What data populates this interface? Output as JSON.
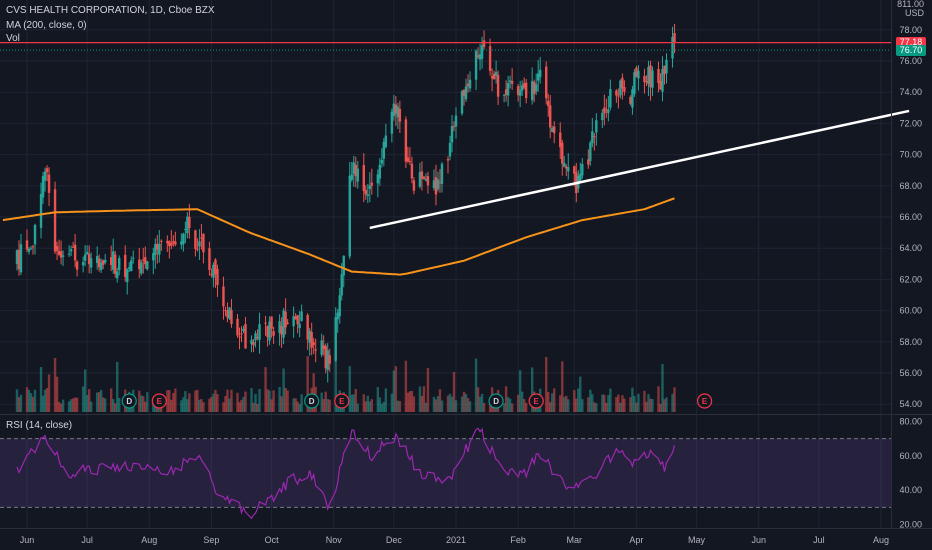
{
  "header": {
    "title": "CVS HEALTH CORPORATION, 1D, Cboe BZX",
    "ma_label": "MA (200, close, 0)",
    "vol_label": "Vol",
    "rsi_label": "RSI (14, close)",
    "currency": "USD",
    "top_right_partial": "811.00"
  },
  "price_tags": {
    "last": "77.18",
    "prev": "76.70",
    "last_color": "#f23645",
    "prev_color": "#089981"
  },
  "chart_data": [
    {
      "type": "candlestick",
      "title": "CVS HEALTH CORPORATION, 1D, Cboe BZX",
      "x_ticks": [
        "Jun",
        "Jul",
        "Aug",
        "Sep",
        "Oct",
        "Nov",
        "Dec",
        "2021",
        "Feb",
        "Mar",
        "Apr",
        "May",
        "Jun",
        "Jul",
        "Aug"
      ],
      "y_ticks": [
        "78.00",
        "76.00",
        "74.00",
        "72.00",
        "70.00",
        "68.00",
        "66.00",
        "64.00",
        "62.00",
        "60.00",
        "58.00",
        "56.00",
        "54.00"
      ],
      "ylim": [
        53.5,
        78.5
      ],
      "series": [
        {
          "name": "CVS",
          "color_up": "#26a69a",
          "color_down": "#ef5350",
          "anchors": [
            {
              "x": "2020-05-27",
              "close": 63.2
            },
            {
              "x": "2020-06-05",
              "close": 65.0
            },
            {
              "x": "2020-06-10",
              "close": 69.5
            },
            {
              "x": "2020-06-15",
              "close": 64.5
            },
            {
              "x": "2020-06-22",
              "close": 63.2
            },
            {
              "x": "2020-07-01",
              "close": 63.5
            },
            {
              "x": "2020-07-10",
              "close": 63.5
            },
            {
              "x": "2020-07-20",
              "close": 62.5
            },
            {
              "x": "2020-08-03",
              "close": 63.5
            },
            {
              "x": "2020-08-20",
              "close": 65.5
            },
            {
              "x": "2020-09-01",
              "close": 63.0
            },
            {
              "x": "2020-09-10",
              "close": 59.5
            },
            {
              "x": "2020-09-20",
              "close": 58.0
            },
            {
              "x": "2020-10-01",
              "close": 59.0
            },
            {
              "x": "2020-10-15",
              "close": 59.5
            },
            {
              "x": "2020-10-30",
              "close": 56.5
            },
            {
              "x": "2020-11-05",
              "close": 62.5
            },
            {
              "x": "2020-11-10",
              "close": 69.5
            },
            {
              "x": "2020-11-20",
              "close": 67.5
            },
            {
              "x": "2020-12-01",
              "close": 74.0
            },
            {
              "x": "2020-12-10",
              "close": 68.5
            },
            {
              "x": "2020-12-23",
              "close": 67.8
            },
            {
              "x": "2021-01-05",
              "close": 74.0
            },
            {
              "x": "2021-01-12",
              "close": 76.8
            },
            {
              "x": "2021-01-22",
              "close": 74.5
            },
            {
              "x": "2021-02-05",
              "close": 73.5
            },
            {
              "x": "2021-02-12",
              "close": 74.8
            },
            {
              "x": "2021-02-20",
              "close": 70.5
            },
            {
              "x": "2021-03-03",
              "close": 68.0
            },
            {
              "x": "2021-03-12",
              "close": 71.5
            },
            {
              "x": "2021-03-22",
              "close": 74.5
            },
            {
              "x": "2021-03-28",
              "close": 73.5
            },
            {
              "x": "2021-04-02",
              "close": 76.0
            },
            {
              "x": "2021-04-12",
              "close": 74.0
            },
            {
              "x": "2021-04-20",
              "close": 77.2
            }
          ]
        },
        {
          "name": "MA (200, close, 0)",
          "color": "#f7931a",
          "anchors": [
            {
              "x": "2020-05-20",
              "y": 65.8
            },
            {
              "x": "2020-06-15",
              "y": 66.3
            },
            {
              "x": "2020-07-15",
              "y": 66.4
            },
            {
              "x": "2020-08-25",
              "y": 66.5
            },
            {
              "x": "2020-09-20",
              "y": 65.0
            },
            {
              "x": "2020-10-20",
              "y": 63.6
            },
            {
              "x": "2020-11-10",
              "y": 62.5
            },
            {
              "x": "2020-12-05",
              "y": 62.3
            },
            {
              "x": "2021-01-05",
              "y": 63.2
            },
            {
              "x": "2021-02-05",
              "y": 64.7
            },
            {
              "x": "2021-03-05",
              "y": 65.8
            },
            {
              "x": "2021-04-05",
              "y": 66.5
            },
            {
              "x": "2021-04-20",
              "y": 67.2
            }
          ]
        },
        {
          "name": "Trendline",
          "color": "#ffffff",
          "anchors": [
            {
              "x": "2020-11-19",
              "y": 65.3
            },
            {
              "x": "2021-08-15",
              "y": 72.8
            }
          ]
        }
      ],
      "horizontal_line": {
        "y": 77.18,
        "color": "#f23645"
      },
      "events": [
        {
          "x": "2020-07-22",
          "label": "D"
        },
        {
          "x": "2020-08-06",
          "label": "E"
        },
        {
          "x": "2020-10-21",
          "label": "D"
        },
        {
          "x": "2020-11-05",
          "label": "E"
        },
        {
          "x": "2021-01-21",
          "label": "D"
        },
        {
          "x": "2021-02-10",
          "label": "E"
        },
        {
          "x": "2021-05-05",
          "label": "E"
        }
      ]
    },
    {
      "type": "line",
      "title": "RSI (14, close)",
      "y_ticks": [
        "80.00",
        "60.00",
        "40.00",
        "20.00"
      ],
      "ylim": [
        18,
        82
      ],
      "band": [
        30,
        70
      ],
      "series": [
        {
          "name": "RSI",
          "color": "#9c27b0",
          "anchors": [
            {
              "x": "2020-05-27",
              "y": 52
            },
            {
              "x": "2020-06-10",
              "y": 72
            },
            {
              "x": "2020-06-20",
              "y": 50
            },
            {
              "x": "2020-07-15",
              "y": 54
            },
            {
              "x": "2020-08-10",
              "y": 50
            },
            {
              "x": "2020-08-25",
              "y": 60
            },
            {
              "x": "2020-09-05",
              "y": 38
            },
            {
              "x": "2020-09-20",
              "y": 25
            },
            {
              "x": "2020-10-10",
              "y": 45
            },
            {
              "x": "2020-10-20",
              "y": 50
            },
            {
              "x": "2020-10-30",
              "y": 30
            },
            {
              "x": "2020-11-10",
              "y": 76
            },
            {
              "x": "2020-11-20",
              "y": 60
            },
            {
              "x": "2020-12-02",
              "y": 72
            },
            {
              "x": "2020-12-15",
              "y": 48
            },
            {
              "x": "2020-12-28",
              "y": 45
            },
            {
              "x": "2021-01-12",
              "y": 76
            },
            {
              "x": "2021-01-25",
              "y": 52
            },
            {
              "x": "2021-02-05",
              "y": 50
            },
            {
              "x": "2021-02-12",
              "y": 62
            },
            {
              "x": "2021-02-22",
              "y": 46
            },
            {
              "x": "2021-03-03",
              "y": 40
            },
            {
              "x": "2021-03-22",
              "y": 62
            },
            {
              "x": "2021-04-01",
              "y": 56
            },
            {
              "x": "2021-04-08",
              "y": 64
            },
            {
              "x": "2021-04-15",
              "y": 52
            },
            {
              "x": "2021-04-20",
              "y": 63
            }
          ]
        }
      ]
    }
  ]
}
